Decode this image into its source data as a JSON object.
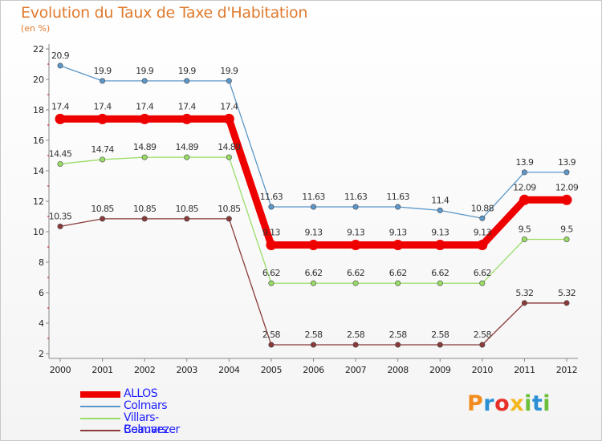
{
  "header": {
    "title": "Evolution du Taux de Taxe d'Habitation",
    "subtitle": "(en %)"
  },
  "logo": {
    "letters": [
      "P",
      "r",
      "o",
      "x",
      "i",
      "t",
      "i"
    ],
    "colors": [
      "#f28c1e",
      "#2b8fd6",
      "#e8302a",
      "#f2b71e",
      "#6cbf3a",
      "#2b8fd6",
      "#6cbf3a"
    ]
  },
  "chart_data": {
    "type": "line",
    "title": "Evolution du Taux de Taxe d'Habitation",
    "ylabel": "(en %)",
    "xlabel": "",
    "x": [
      "2000",
      "2001",
      "2002",
      "2003",
      "2004",
      "2005",
      "2006",
      "2007",
      "2008",
      "2009",
      "2010",
      "2011",
      "2012"
    ],
    "ylim": [
      2,
      22
    ],
    "yticks": [
      "2",
      "4",
      "6",
      "8",
      "10",
      "12",
      "14",
      "16",
      "18",
      "20",
      "22"
    ],
    "grid": false,
    "legend_position": "bottom-left",
    "series": [
      {
        "name": "ALLOS",
        "color": "#ee0000",
        "emphasis": true,
        "values": [
          17.4,
          17.4,
          17.4,
          17.4,
          17.4,
          9.13,
          9.13,
          9.13,
          9.13,
          9.13,
          9.13,
          12.09,
          12.09
        ],
        "labels": [
          "17.4",
          "17.4",
          "17.4",
          "17.4",
          "17.4",
          "9.13",
          "9.13",
          "9.13",
          "9.13",
          "9.13",
          "9.13",
          "12.09",
          "12.09"
        ]
      },
      {
        "name": "Colmars",
        "color": "#5b97c9",
        "values": [
          20.9,
          19.9,
          19.9,
          19.9,
          19.9,
          11.63,
          11.63,
          11.63,
          11.63,
          11.4,
          10.88,
          13.9,
          13.9
        ],
        "labels": [
          "20.9",
          "19.9",
          "19.9",
          "19.9",
          "19.9",
          "11.63",
          "11.63",
          "11.63",
          "11.63",
          "11.4",
          "10.88",
          "13.9",
          "13.9"
        ]
      },
      {
        "name": "Villars-Colmars",
        "color": "#99dd66",
        "values": [
          14.45,
          14.74,
          14.89,
          14.89,
          14.89,
          6.62,
          6.62,
          6.62,
          6.62,
          6.62,
          6.62,
          9.5,
          9.5
        ],
        "labels": [
          "14.45",
          "14.74",
          "14.89",
          "14.89",
          "14.89",
          "6.62",
          "6.62",
          "6.62",
          "6.62",
          "6.62",
          "6.62",
          "9.5",
          "9.5"
        ]
      },
      {
        "name": "Beauvezer",
        "color": "#8a3a3a",
        "values": [
          10.35,
          10.85,
          10.85,
          10.85,
          10.85,
          2.58,
          2.58,
          2.58,
          2.58,
          2.58,
          2.58,
          5.32,
          5.32
        ],
        "labels": [
          "10.35",
          "10.85",
          "10.85",
          "10.85",
          "10.85",
          "2.58",
          "2.58",
          "2.58",
          "2.58",
          "2.58",
          "2.58",
          "5.32",
          "5.32"
        ]
      }
    ]
  }
}
